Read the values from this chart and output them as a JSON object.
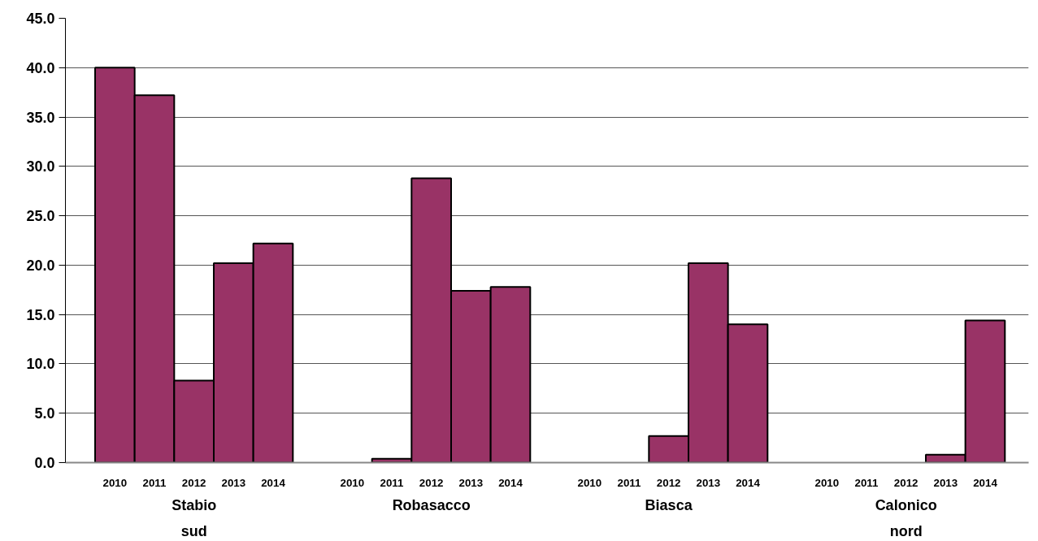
{
  "chart_data": {
    "type": "bar",
    "categories": [
      "2010",
      "2011",
      "2012",
      "2013",
      "2014",
      null,
      "2010",
      "2011",
      "2012",
      "2013",
      "2014",
      null,
      "2010",
      "2011",
      "2012",
      "2013",
      "2014",
      null,
      "2010",
      "2011",
      "2012",
      "2013",
      "2014"
    ],
    "series": [
      {
        "color": "#993366",
        "values": [
          40.0,
          37.2,
          8.3,
          20.2,
          22.2,
          null,
          null,
          0.4,
          28.8,
          17.4,
          17.8,
          null,
          null,
          null,
          2.7,
          20.2,
          14.0,
          null,
          null,
          null,
          null,
          0.8,
          14.4
        ]
      }
    ],
    "annotations": [
      "Stabio sud",
      "Robasacco",
      "Biasca",
      "Calonico nord"
    ],
    "ylim": [
      0,
      45
    ],
    "yticks": [
      {
        "value": 0,
        "label": "0.0"
      },
      {
        "value": 5,
        "label": "5.0"
      },
      {
        "value": 10,
        "label": "10.0"
      },
      {
        "value": 15,
        "label": "15.0"
      },
      {
        "value": 20,
        "label": "20.0"
      },
      {
        "value": 25,
        "label": "25.0"
      },
      {
        "value": 30,
        "label": "30.0"
      },
      {
        "value": 35,
        "label": "35.0"
      },
      {
        "value": 40,
        "label": "40.0"
      },
      {
        "value": 45,
        "label": "45.0"
      }
    ],
    "grid": "y"
  }
}
